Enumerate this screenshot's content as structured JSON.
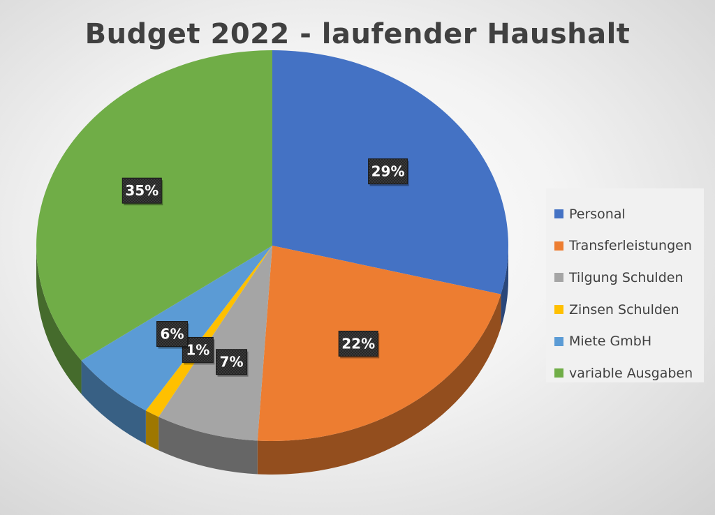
{
  "chart_data": {
    "type": "pie",
    "title": "Budget 2022 - laufender Haushalt",
    "categories": [
      "Personal",
      "Transferleistungen",
      "Tilgung Schulden",
      "Zinsen Schulden",
      "Miete GmbH",
      "variable Ausgaben"
    ],
    "values": [
      29,
      22,
      7,
      1,
      6,
      35
    ],
    "labels": [
      "29%",
      "22%",
      "7%",
      "1%",
      "6%",
      "35%"
    ],
    "colors": [
      "#4472C4",
      "#ED7D31",
      "#A5A5A5",
      "#FFC000",
      "#5B9BD5",
      "#70AD47"
    ],
    "legend_position": "right",
    "style": "3d"
  }
}
